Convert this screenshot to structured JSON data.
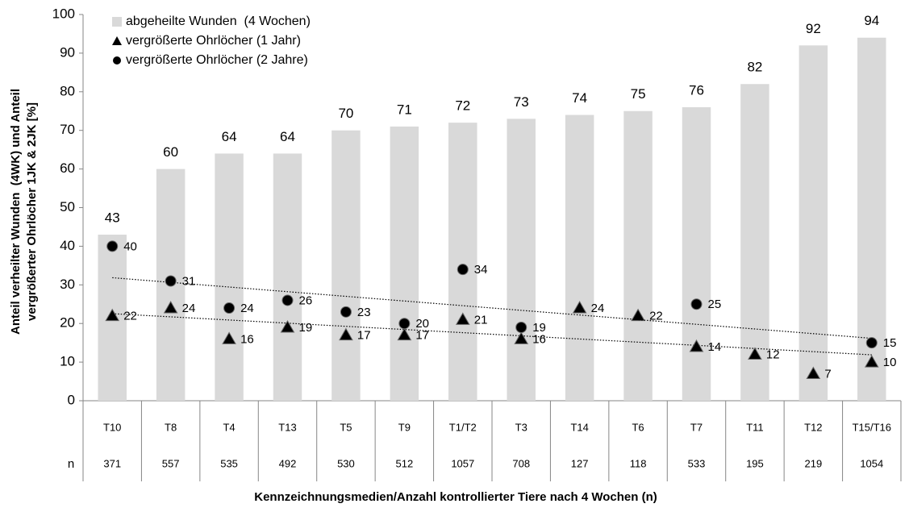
{
  "chart_data": {
    "type": "bar",
    "y_label": [
      "Anteil verheilter Wunden  (4WK) und Anteil",
      "vergrößerter Ohrlöcher 1JK & 2JK [%]"
    ],
    "x_label": "Kennzeichnungsmedien/Anzahl kontrollierter Tiere nach 4 Wochen (n)",
    "categories": [
      "T10",
      "T8",
      "T4",
      "T13",
      "T5",
      "T9",
      "T1/T2",
      "T3",
      "T14",
      "T6",
      "T7",
      "T11",
      "T12",
      "T15/T16"
    ],
    "n_label": "n",
    "n": [
      371,
      557,
      535,
      492,
      530,
      512,
      1057,
      708,
      127,
      118,
      533,
      195,
      219,
      1054
    ],
    "series": [
      {
        "name": "abgeheilte Wunden  (4 Wochen)",
        "type": "bar",
        "color": "#d9d9d9",
        "values": [
          43,
          60,
          64,
          64,
          70,
          71,
          72,
          73,
          74,
          75,
          76,
          82,
          92,
          94
        ]
      },
      {
        "name": "vergrößerte Ohrlöcher (1 Jahr)",
        "type": "scatter",
        "marker": "triangle",
        "color": "#000000",
        "trendline": true,
        "values": [
          22,
          24,
          16,
          19,
          17,
          17,
          21,
          16,
          24,
          22,
          14,
          12,
          7,
          10
        ]
      },
      {
        "name": "vergrößerte Ohrlöcher (2 Jahre)",
        "type": "scatter",
        "marker": "circle",
        "color": "#000000",
        "trendline": true,
        "values": [
          40,
          31,
          24,
          26,
          23,
          20,
          34,
          19,
          null,
          null,
          25,
          null,
          null,
          15
        ]
      }
    ],
    "ylim": [
      0,
      100
    ],
    "yticks": [
      0,
      10,
      20,
      30,
      40,
      50,
      60,
      70,
      80,
      90,
      100
    ],
    "legend": "top-left"
  }
}
